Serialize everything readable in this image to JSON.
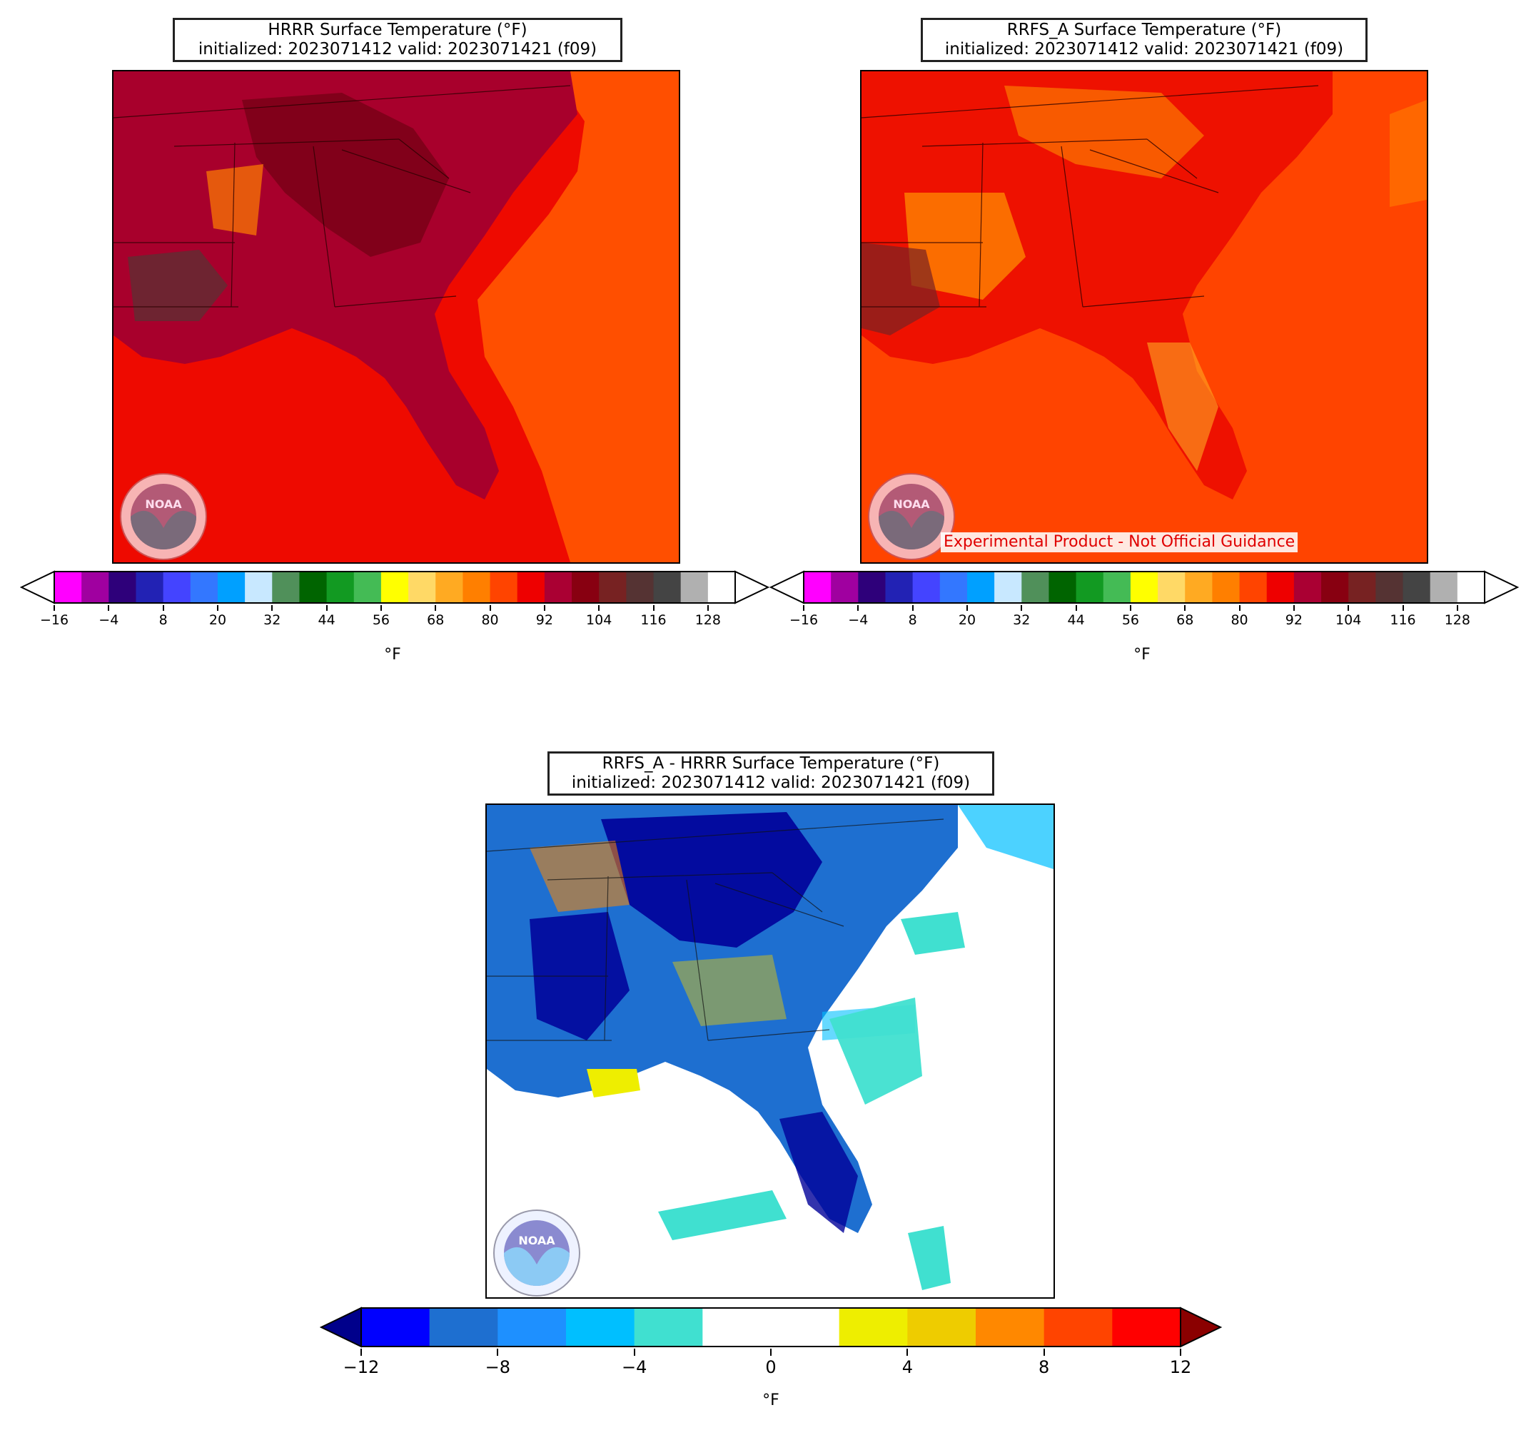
{
  "panels": [
    {
      "id": "hrrr",
      "title_line1": "HRRR Surface Temperature (°F)",
      "title_line2": "initialized: 2023071412 valid: 2023071421 (f09)",
      "colorbar_unit": "°F",
      "tick_labels": [
        "−16",
        "−4",
        "8",
        "20",
        "32",
        "44",
        "56",
        "68",
        "80",
        "92",
        "104",
        "116",
        "128"
      ]
    },
    {
      "id": "rrfs",
      "title_line1": "RRFS_A Surface Temperature (°F)",
      "title_line2": "initialized: 2023071412 valid: 2023071421 (f09)",
      "colorbar_unit": "°F",
      "tick_labels": [
        "−16",
        "−4",
        "8",
        "20",
        "32",
        "44",
        "56",
        "68",
        "80",
        "92",
        "104",
        "116",
        "128"
      ],
      "disclaimer": "Experimental Product - Not Official Guidance"
    },
    {
      "id": "diff",
      "title_line1": "RRFS_A - HRRR Surface Temperature (°F)",
      "title_line2": "initialized: 2023071412 valid: 2023071421 (f09)",
      "colorbar_unit": "°F",
      "tick_labels": [
        "−12",
        "−8",
        "−4",
        "0",
        "4",
        "8",
        "12"
      ]
    }
  ],
  "temp_colorbar_colors": [
    "#ff00ff",
    "#a000a0",
    "#2e007a",
    "#2222b4",
    "#4444ff",
    "#3377ff",
    "#00a0ff",
    "#c8e8ff",
    "#50905a",
    "#006400",
    "#129a22",
    "#44bb55",
    "#ffff00",
    "#ffd966",
    "#ffaa22",
    "#ff7f00",
    "#ff4400",
    "#ee0000",
    "#aa0033",
    "#880011",
    "#772222",
    "#553333",
    "#444444",
    "#b0b0b0"
  ],
  "diff_colorbar_colors": [
    "#0000ff",
    "#1e6fd0",
    "#1e90ff",
    "#00bfff",
    "#40e0d0",
    "#ffffff",
    "#ffffff",
    "#eeee00",
    "#eecc00",
    "#ff8800",
    "#ff4400",
    "#ff0000"
  ],
  "map_colors": {
    "ocean_hrrr_east": "#ff4f00",
    "ocean_hrrr_gulf": "#ee0a00",
    "land_hrrr": "#a8002c",
    "land_hrrr_hot": "#7a0018",
    "ocean_rrfs": "#ff4400",
    "land_rrfs": "#ee1100",
    "land_rrfs_warm": "#ff8c00",
    "diff_land": "#1e6fd0",
    "diff_cold": "#000099",
    "diff_ocean": "#ffffff",
    "diff_cool_ocean": "#40e0d0"
  },
  "logo_text": "NOAA"
}
